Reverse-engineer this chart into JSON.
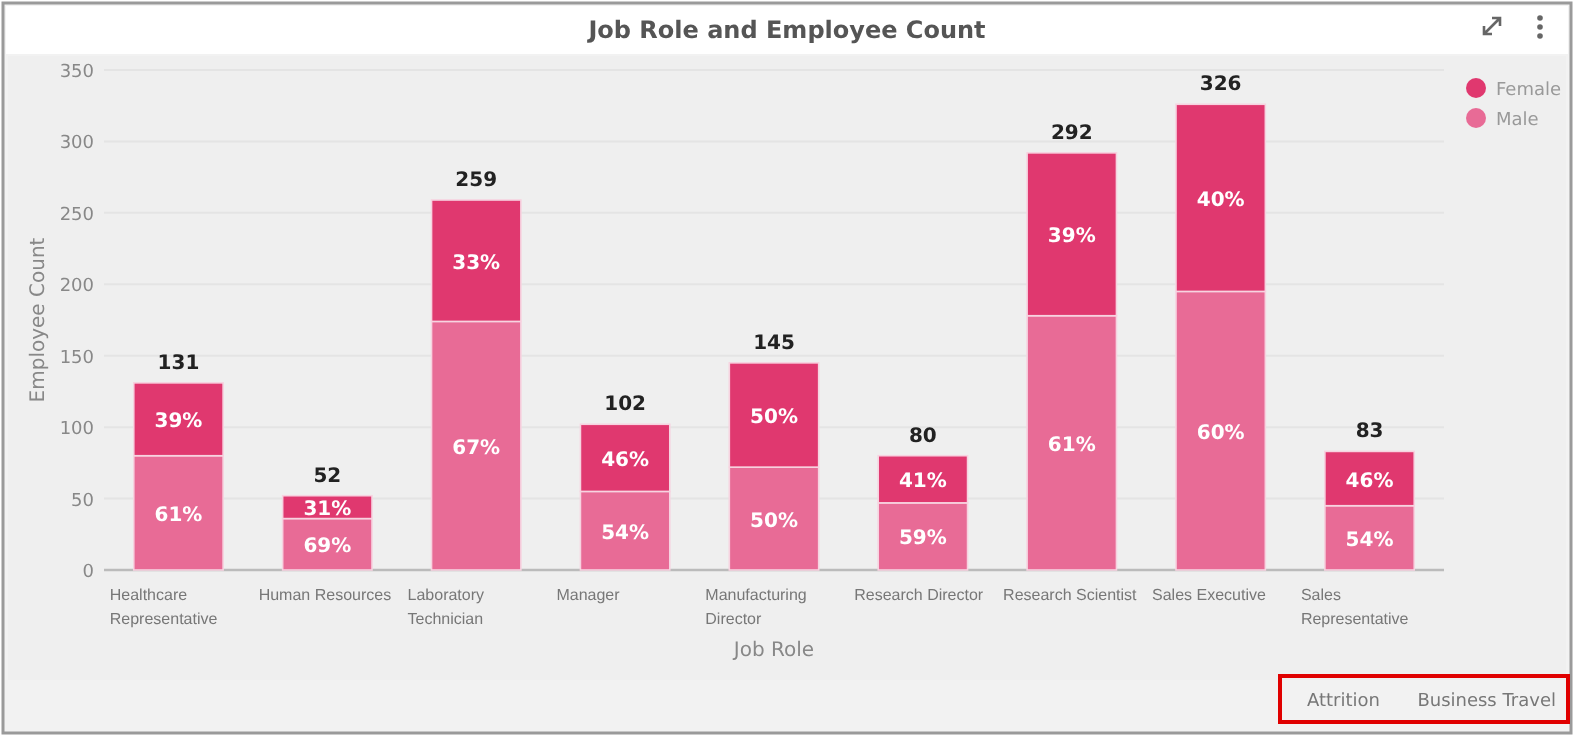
{
  "chart_data": {
    "type": "bar",
    "title": "Job Role and Employee Count",
    "xlabel": "Job Role",
    "ylabel": "Employee Count",
    "categories": [
      "Healthcare Representative",
      "Human Resources",
      "Laboratory Technician",
      "Manager",
      "Manufacturing Director",
      "Research Director",
      "Research Scientist",
      "Sales Executive",
      "Sales Representative"
    ],
    "stacked": true,
    "series": [
      {
        "name": "Male",
        "color": "#e86b96",
        "values": [
          80,
          36,
          174,
          55,
          72,
          47,
          178,
          195,
          45
        ]
      },
      {
        "name": "Female",
        "color": "#e0386f",
        "values": [
          51,
          16,
          85,
          47,
          73,
          33,
          114,
          131,
          38
        ]
      }
    ],
    "totals": [
      "131",
      "52",
      "259",
      "102",
      "145",
      "80",
      "292",
      "326",
      "83"
    ],
    "ylim": [
      0,
      350
    ],
    "yticks": [
      0,
      50,
      100,
      150,
      200,
      250,
      300,
      350
    ],
    "grid": "y",
    "legend": "top right",
    "annotations": [
      "61%",
      "39%",
      "69%",
      "31%",
      "67%",
      "33%",
      "54%",
      "46%",
      "50%",
      "50%",
      "59%",
      "41%",
      "61%",
      "39%",
      "60%",
      "40%",
      "54%",
      "46%",
      "Attrition",
      "Business Travel"
    ]
  }
}
